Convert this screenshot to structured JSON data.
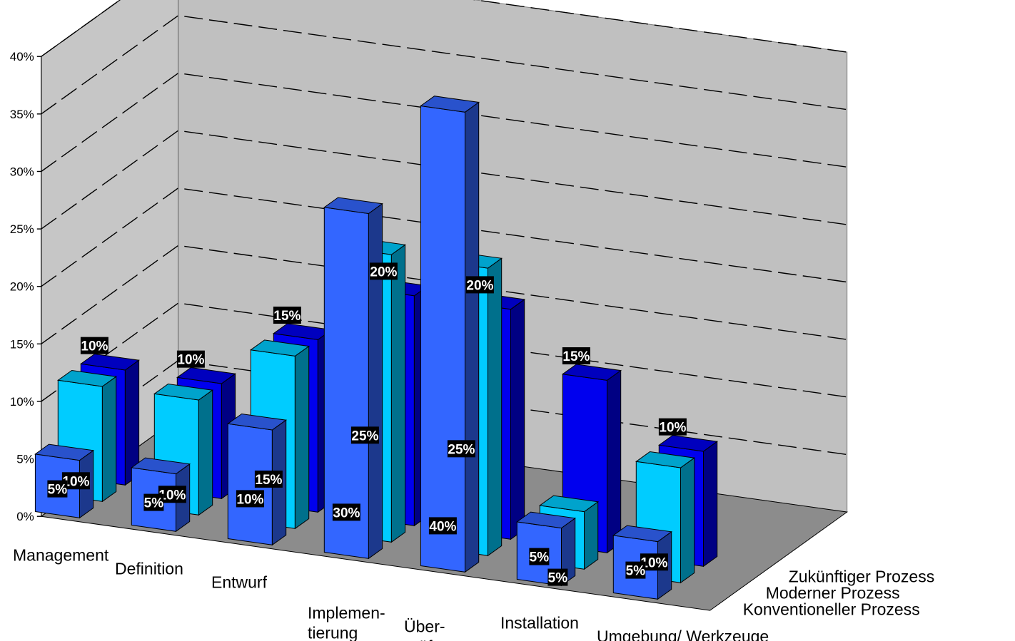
{
  "chart_data": {
    "type": "bar3d",
    "title": "",
    "yticks": [
      "0%",
      "5%",
      "10%",
      "15%",
      "20%",
      "25%",
      "30%",
      "35%",
      "40%"
    ],
    "ylim": [
      0,
      40
    ],
    "categories": [
      [
        "Management"
      ],
      [
        "Definition"
      ],
      [
        "Entwurf"
      ],
      [
        "Implemen-",
        "tierung"
      ],
      [
        "Über-",
        "prüfung"
      ],
      [
        "Installation"
      ],
      [
        "Umgebung/ Werkzeuge"
      ]
    ],
    "series": [
      {
        "name": "Konventioneller Prozess",
        "values": [
          5,
          5,
          10,
          30,
          40,
          5,
          5
        ],
        "labels": [
          "5%",
          "5%",
          "10%",
          "30%",
          "40%",
          "5%",
          "5%"
        ],
        "color": "#3366ff"
      },
      {
        "name": "Moderner Prozess",
        "values": [
          10,
          10,
          15,
          25,
          25,
          5,
          10
        ],
        "labels": [
          "10%",
          "10%",
          "15%",
          "25%",
          "25%",
          "5%",
          "10%"
        ],
        "color": "#00ccff"
      },
      {
        "name": "Zukünftiger Prozess",
        "values": [
          10,
          10,
          15,
          20,
          20,
          15,
          10
        ],
        "labels": [
          "10%",
          "10%",
          "15%",
          "20%",
          "20%",
          "15%",
          "10%"
        ],
        "color": "#0000ee"
      }
    ],
    "grid": true
  }
}
